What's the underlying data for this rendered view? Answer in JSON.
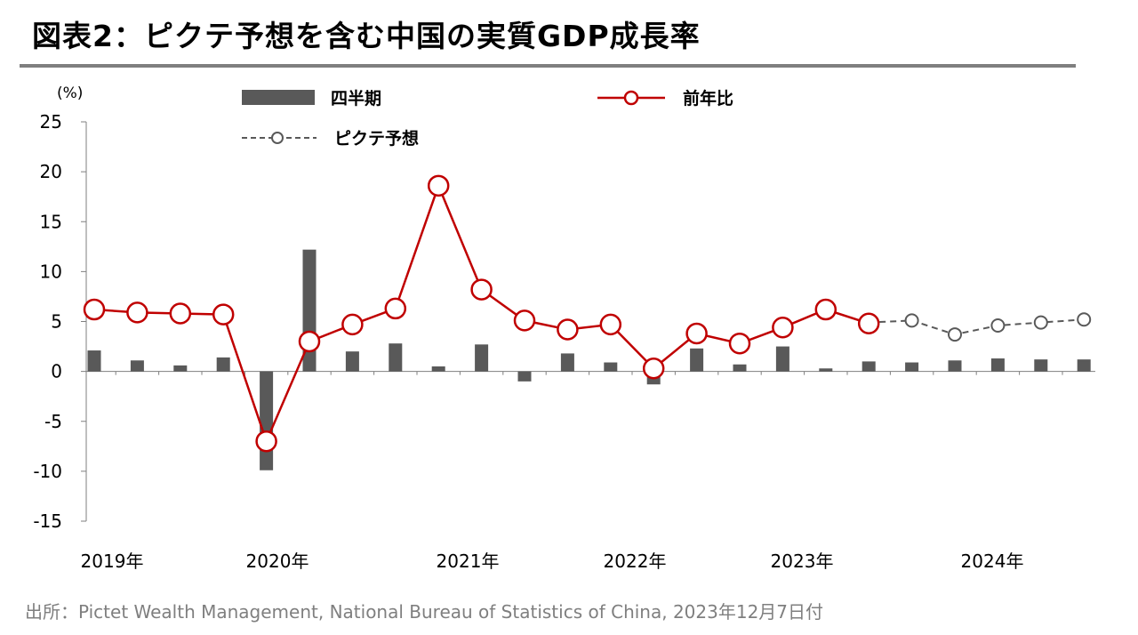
{
  "title": "図表2：ピクテ予想を含む中国の実質GDP成長率",
  "source": "出所：Pictet Wealth Management, National Bureau of Statistics of China, 2023年12月7日付",
  "colors": {
    "bar": "#595959",
    "yoy": "#c00000",
    "forecast": "#595959",
    "rule": "#7f7f7f"
  },
  "chart_data": {
    "type": "bar",
    "unit_label": "(%)",
    "ylim": [
      -15,
      25
    ],
    "yticks": [
      "25",
      "20",
      "15",
      "10",
      "5",
      "0",
      "-5",
      "-10",
      "-15"
    ],
    "year_labels": [
      "2019年",
      "2020年",
      "2021年",
      "2022年",
      "2023年",
      "2024年"
    ],
    "legend": {
      "bar": "四半期",
      "yoy": "前年比",
      "forecast": "ピクテ予想"
    },
    "series": [
      {
        "name": "四半期",
        "type": "bar",
        "values": [
          2.1,
          1.1,
          0.6,
          1.4,
          -9.9,
          12.2,
          2.0,
          2.8,
          0.5,
          2.7,
          -1.0,
          1.8,
          0.9,
          -1.3,
          2.3,
          0.7,
          2.5,
          0.3,
          1.0,
          0.9,
          1.1,
          1.3,
          1.2,
          1.2
        ]
      },
      {
        "name": "前年比",
        "type": "line",
        "values": [
          6.2,
          5.9,
          5.8,
          5.7,
          -7.0,
          3.0,
          4.7,
          6.3,
          18.6,
          8.2,
          5.1,
          4.2,
          4.7,
          0.3,
          3.8,
          2.8,
          4.4,
          6.2,
          4.8,
          null,
          null,
          null,
          null,
          null
        ]
      },
      {
        "name": "ピクテ予想",
        "type": "line",
        "values": [
          null,
          null,
          null,
          null,
          null,
          null,
          null,
          null,
          null,
          null,
          null,
          null,
          null,
          null,
          null,
          null,
          null,
          null,
          4.9,
          5.1,
          3.7,
          4.6,
          4.9,
          5.2
        ]
      }
    ]
  }
}
